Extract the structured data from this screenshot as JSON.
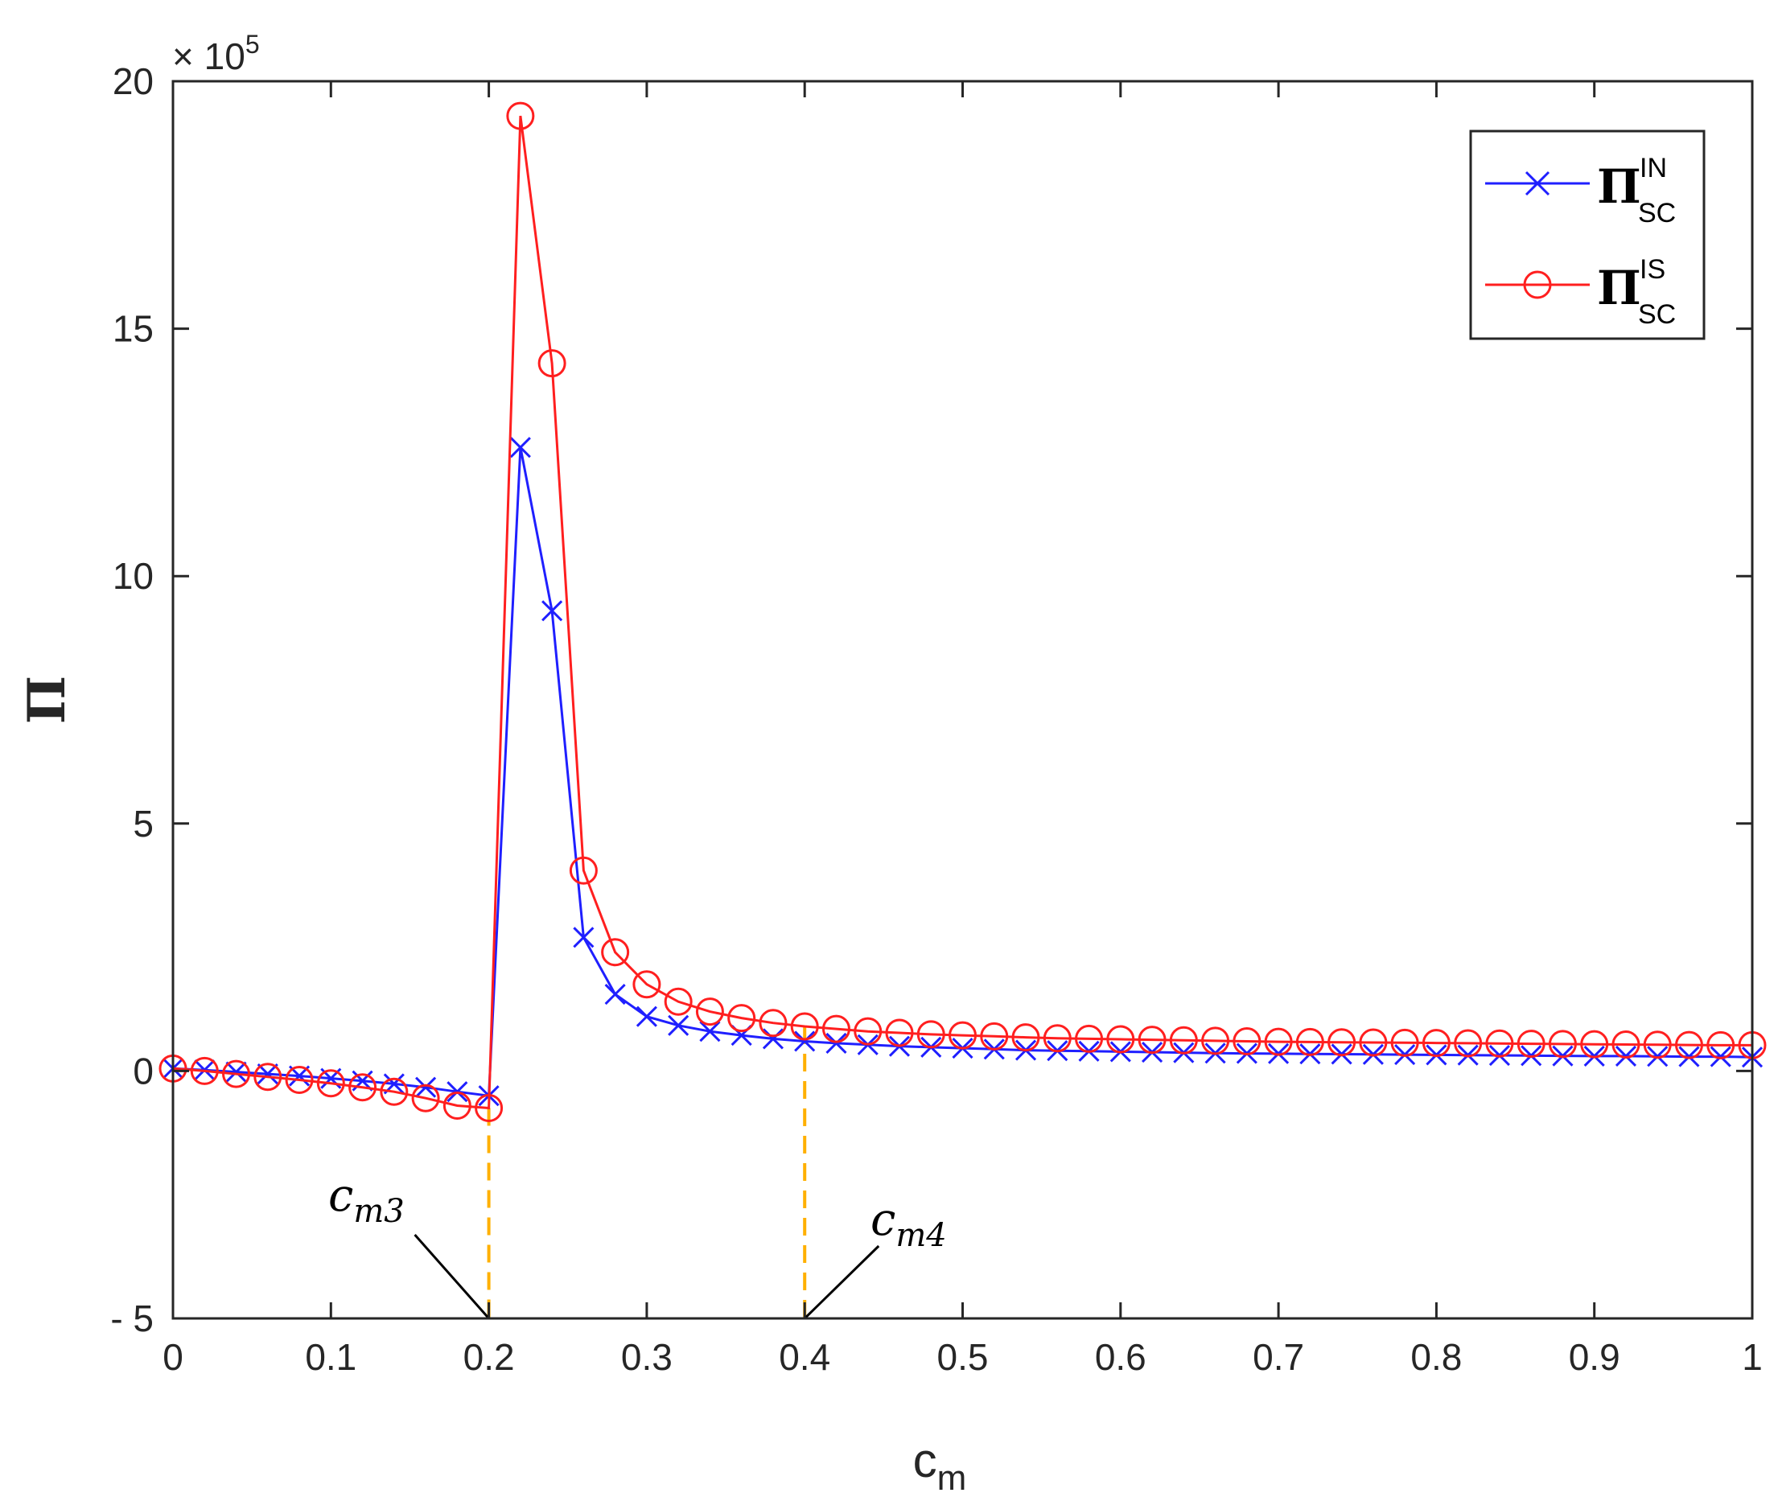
{
  "chart_data": {
    "type": "line",
    "xlabel": {
      "base": "c",
      "sub": "m"
    },
    "ylabel": "Π",
    "y_multiplier": {
      "base": "× 10",
      "exp": "5"
    },
    "xlim": [
      0,
      1
    ],
    "ylim": [
      -5,
      20
    ],
    "x_ticks": [
      "0",
      "0.1",
      "0.2",
      "0.3",
      "0.4",
      "0.5",
      "0.6",
      "0.7",
      "0.8",
      "0.9",
      "1"
    ],
    "y_ticks": [
      "- 5",
      "0",
      "5",
      "10",
      "15",
      "20"
    ],
    "grid": false,
    "legend_position": "top-right",
    "x": [
      0,
      0.02,
      0.04,
      0.06,
      0.08,
      0.1,
      0.12,
      0.14,
      0.16,
      0.18,
      0.2,
      0.22,
      0.24,
      0.26,
      0.28,
      0.3,
      0.32,
      0.34,
      0.36,
      0.38,
      0.4,
      0.42,
      0.44,
      0.46,
      0.48,
      0.5,
      0.52,
      0.54,
      0.56,
      0.58,
      0.6,
      0.62,
      0.64,
      0.66,
      0.68,
      0.7,
      0.72,
      0.74,
      0.76,
      0.78,
      0.8,
      0.82,
      0.84,
      0.86,
      0.88,
      0.9,
      0.92,
      0.94,
      0.96,
      0.98,
      1.0
    ],
    "series": [
      {
        "name_main": "Π",
        "name_sup": "IN",
        "name_sub": "SC",
        "color": "#1f1fff",
        "marker": "x",
        "values": [
          0.05,
          0.02,
          -0.02,
          -0.06,
          -0.1,
          -0.15,
          -0.2,
          -0.26,
          -0.33,
          -0.42,
          -0.5,
          12.6,
          9.3,
          2.7,
          1.55,
          1.1,
          0.92,
          0.8,
          0.72,
          0.65,
          0.6,
          0.56,
          0.53,
          0.5,
          0.48,
          0.46,
          0.44,
          0.42,
          0.41,
          0.4,
          0.39,
          0.38,
          0.37,
          0.36,
          0.355,
          0.35,
          0.345,
          0.34,
          0.335,
          0.33,
          0.325,
          0.32,
          0.315,
          0.31,
          0.305,
          0.3,
          0.3,
          0.295,
          0.29,
          0.29,
          0.28
        ]
      },
      {
        "name_main": "Π",
        "name_sup": "IS",
        "name_sub": "SC",
        "color": "#ff1f1f",
        "marker": "o",
        "values": [
          0.05,
          0.0,
          -0.06,
          -0.12,
          -0.18,
          -0.25,
          -0.33,
          -0.42,
          -0.55,
          -0.7,
          -0.75,
          19.3,
          14.3,
          4.05,
          2.4,
          1.75,
          1.4,
          1.2,
          1.07,
          0.97,
          0.9,
          0.85,
          0.8,
          0.77,
          0.74,
          0.72,
          0.7,
          0.68,
          0.66,
          0.65,
          0.64,
          0.63,
          0.62,
          0.61,
          0.6,
          0.59,
          0.585,
          0.58,
          0.575,
          0.57,
          0.565,
          0.56,
          0.555,
          0.55,
          0.545,
          0.54,
          0.535,
          0.53,
          0.525,
          0.52,
          0.52
        ]
      }
    ],
    "annotations": [
      {
        "x": 0.2,
        "base": "c",
        "sub": "m3",
        "line_color": "#ffb000"
      },
      {
        "x": 0.4,
        "base": "c",
        "sub": "m4",
        "line_color": "#ffb000"
      }
    ]
  }
}
